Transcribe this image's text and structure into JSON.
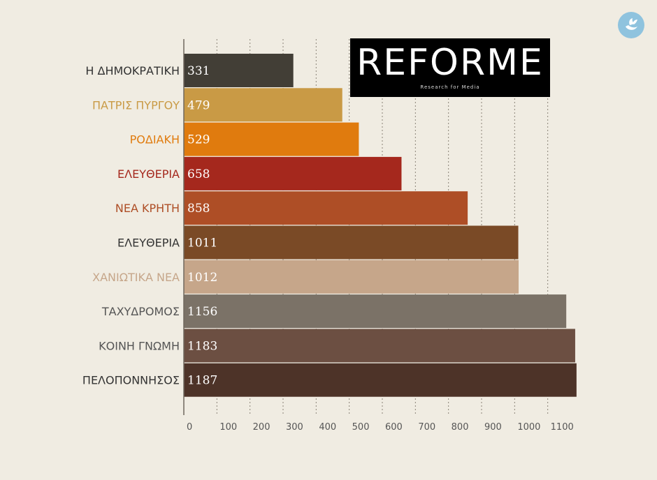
{
  "chart_data": {
    "type": "bar",
    "orientation": "horizontal",
    "categories": [
      "Η ΔΗΜΟΚΡΑΤΙΚΗ",
      "ΠΑΤΡΙΣ ΠΥΡΓΟΥ",
      "ΡΟΔΙΑΚΗ",
      "ΕΛΕΥΘΕΡΙΑ",
      "ΝΕΑ ΚΡΗΤΗ",
      "ΕΛΕΥΘΕΡΙΑ",
      "ΧΑΝΙΩΤΙΚΑ ΝΕΑ",
      "ΤΑΧΥΔΡΟΜΟΣ",
      "ΚΟΙΝΗ ΓΝΩΜΗ",
      "ΠΕΛΟΠΟΝΝΗΣΟΣ"
    ],
    "values": [
      331,
      479,
      529,
      658,
      858,
      1011,
      1012,
      1156,
      1183,
      1187
    ],
    "bar_colors": [
      "#423e36",
      "#c99a45",
      "#e07b0e",
      "#a5281d",
      "#ae4e26",
      "#7a4a26",
      "#c6a68a",
      "#7b7267",
      "#6c4f42",
      "#4d3328"
    ],
    "label_colors": [
      "#333333",
      "#c99a45",
      "#e07b0e",
      "#a5281d",
      "#ae4e26",
      "#333333",
      "#c6a68a",
      "#555555",
      "#555555",
      "#333333"
    ],
    "x_ticks": [
      0,
      100,
      200,
      300,
      400,
      500,
      600,
      700,
      800,
      900,
      1000,
      1100
    ],
    "xlim": [
      0,
      1200
    ],
    "grid": true,
    "title": "",
    "xlabel": "",
    "ylabel": ""
  },
  "logo": {
    "title": "REFORME",
    "subtitle": "Research for Media"
  },
  "colors": {
    "background": "#f0ece2",
    "grid": "#8a8277",
    "badge": "#8fc3de"
  },
  "badge_icon": "dove-icon"
}
